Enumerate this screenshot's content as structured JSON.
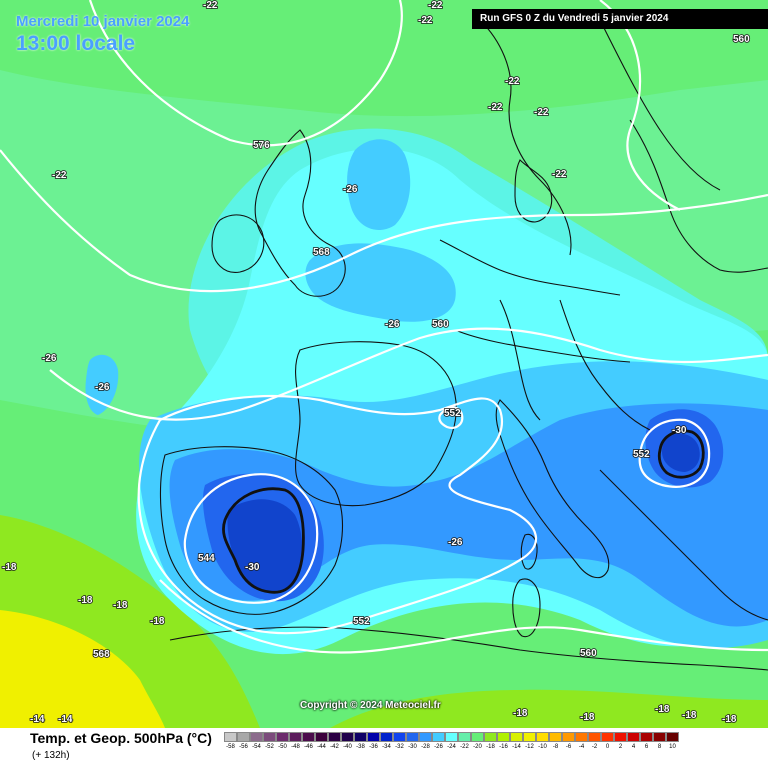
{
  "header": {
    "date": "Mercredi 10 janvier 2024",
    "local_time": "13:00 locale",
    "run_info": "Run GFS 0 Z du Vendredi 5 janvier 2024"
  },
  "footer": {
    "field_title": "Temp. et Geop. 500hPa (°C)",
    "forecast_hour": "(+ 132h)",
    "copyright": "Copyright © 2024 Meteociel.fr"
  },
  "colors": {
    "warm_lime": "#8fe820",
    "yellow": "#f0f000",
    "green_bg": "#66ee77",
    "light_green": "#6ff2a0",
    "cyan_pale": "#5cf4e6",
    "cyan": "#66ffff",
    "cyan_blue": "#44ccff",
    "blue_light": "#3399ff",
    "blue": "#2266ee",
    "blue_deep": "#1144cc",
    "contour_white": "#ffffff",
    "contour_black": "#111111",
    "land_border": "#111111"
  },
  "temperature_labels": [
    "-22",
    "-22",
    "-22",
    "-22",
    "-22",
    "-22",
    "-22",
    "-22",
    "-26",
    "-26",
    "-26",
    "-26",
    "-26",
    "-30",
    "-30",
    "-18",
    "-18",
    "-18",
    "-18",
    "-18",
    "-18",
    "-18",
    "-18",
    "-18",
    "-14",
    "-14"
  ],
  "geopotential_labels": [
    "576",
    "568",
    "560",
    "560",
    "552",
    "552",
    "552",
    "544",
    "568",
    "560"
  ],
  "legend_scale": {
    "unit": "°C",
    "values": [
      "-58",
      "-56",
      "-54",
      "-52",
      "-50",
      "-48",
      "-46",
      "-44",
      "-42",
      "-40",
      "-38",
      "-36",
      "-34",
      "-32",
      "-30",
      "-28",
      "-26",
      "-24",
      "-22",
      "-20",
      "-18",
      "-16",
      "-14",
      "-12",
      "-10",
      "-8",
      "-6",
      "-4",
      "-2",
      "0",
      "2",
      "4",
      "6",
      "8",
      "10"
    ],
    "colors": [
      "#c8c8c8",
      "#a8a8a8",
      "#8c6c8c",
      "#7c4c7c",
      "#6c2c6c",
      "#5c1c5c",
      "#4c0c4c",
      "#3c003c",
      "#2c0044",
      "#20004c",
      "#100066",
      "#0000aa",
      "#0022cc",
      "#1144ee",
      "#2266ee",
      "#3399ff",
      "#44ccff",
      "#66ffff",
      "#66eeaa",
      "#66ee77",
      "#8fe820",
      "#b0f000",
      "#d8f000",
      "#f0f000",
      "#ffdd00",
      "#ffbb00",
      "#ff9900",
      "#ff7700",
      "#ff5500",
      "#ff3300",
      "#ee1100",
      "#cc0000",
      "#aa0000",
      "#880000",
      "#660000"
    ]
  }
}
